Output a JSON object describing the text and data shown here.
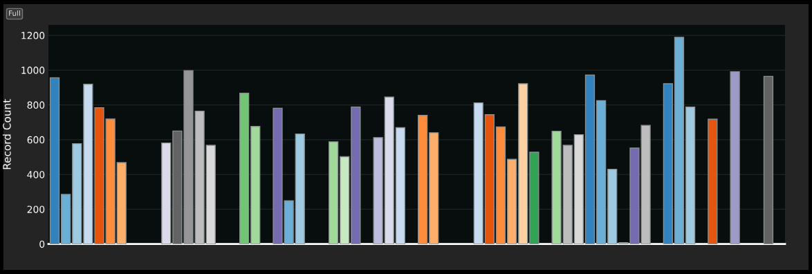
{
  "chart_data": {
    "type": "bar",
    "ylabel": "Record Count",
    "annotations": [
      "Full"
    ],
    "categories": [
      null,
      null,
      null,
      null,
      null,
      null,
      null,
      null,
      null,
      null,
      null,
      null,
      null,
      null,
      null,
      null,
      null,
      null,
      null,
      null,
      null,
      null,
      null,
      null,
      null,
      null,
      null,
      null,
      null,
      null,
      null,
      null,
      null,
      null,
      null,
      null,
      null,
      null,
      null,
      null,
      null,
      null,
      null,
      null,
      null,
      null,
      null,
      null,
      null,
      null,
      null,
      null,
      null,
      null,
      null,
      null,
      null,
      null,
      null,
      null,
      null,
      null,
      null,
      null,
      null,
      null
    ],
    "values": [
      956,
      285,
      577,
      919,
      784,
      719,
      468,
      null,
      null,
      null,
      581,
      650,
      997,
      764,
      568,
      null,
      null,
      867,
      676,
      null,
      781,
      249,
      633,
      null,
      null,
      588,
      502,
      788,
      null,
      612,
      845,
      669,
      null,
      740,
      640,
      null,
      null,
      null,
      812,
      744,
      673,
      487,
      922,
      528,
      null,
      649,
      568,
      629,
      972,
      825,
      430,
      8,
      552,
      682,
      null,
      922,
      1189,
      788,
      null,
      718,
      null,
      991,
      null,
      null,
      964,
      null
    ],
    "colors": [
      "#3182bd",
      "#6baed6",
      "#9ecae1",
      "#c6dbef",
      "#e6550d",
      "#fd8d3c",
      "#fdae6b",
      null,
      null,
      null,
      "#dadaeb",
      "#636363",
      "#969696",
      "#bdbdbd",
      "#d9d9d9",
      null,
      null,
      "#74c476",
      "#a1d99b",
      null,
      "#756bb1",
      "#6baed6",
      "#9ecae1",
      null,
      null,
      "#a1d99b",
      "#c7e9c0",
      "#756bb1",
      null,
      "#bcbddc",
      "#dadaeb",
      "#c6dbef",
      null,
      "#fd8d3c",
      "#fdae6b",
      null,
      null,
      null,
      "#c6dbef",
      "#e6550d",
      "#fd8d3c",
      "#fdae6b",
      "#fdd0a2",
      "#31a354",
      null,
      "#a1d99b",
      "#bdbdbd",
      "#d9d9d9",
      "#3182bd",
      "#6baed6",
      "#9ecae1",
      "#c7e9c0",
      "#756bb1",
      "#bdbdbd",
      null,
      "#3182bd",
      "#6baed6",
      "#9ecae1",
      null,
      "#e6550d",
      null,
      "#9e9ac8",
      null,
      null,
      "#636363",
      null
    ],
    "ylim": [
      0,
      1260
    ],
    "yticks": [
      0,
      200,
      400,
      600,
      800,
      1000,
      1200
    ],
    "grid": "y",
    "tick_labels": "y",
    "legend": false
  }
}
